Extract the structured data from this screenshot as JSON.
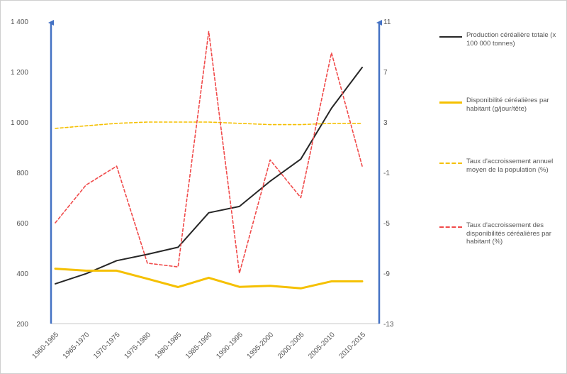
{
  "chart_data": {
    "type": "line",
    "categories": [
      "1960-1965",
      "1965-1970",
      "1970-1975",
      "1975-1980",
      "1980-1985",
      "1985-1990",
      "1990-1995",
      "1995-2000",
      "2000-2005",
      "2005-2010",
      "2010-2015"
    ],
    "left_axis": {
      "min": 200,
      "max": 1400,
      "step": 200,
      "tick_labels": [
        "200",
        "400",
        "600",
        "800",
        "1 000",
        "1 200",
        "1 400"
      ]
    },
    "right_axis": {
      "min": -13,
      "max": 11,
      "step": 4,
      "tick_labels": [
        "-13",
        "-9",
        "-5",
        "-1",
        "3",
        "7",
        "11"
      ]
    },
    "series": [
      {
        "name": "Production céréalière totale (x 100 000 tonnes)",
        "axis": "left",
        "color": "#262626",
        "style": "solid",
        "values": [
          358,
          398,
          450,
          475,
          503,
          640,
          665,
          765,
          853,
          1055,
          1217
        ]
      },
      {
        "name": " Disponibilité céréalières par habitant (g/jour/tête)",
        "axis": "left",
        "color": "#f5c000",
        "style": "solid",
        "values": [
          418,
          410,
          410,
          378,
          345,
          382,
          346,
          350,
          340,
          368,
          368
        ]
      },
      {
        "name": "Taux d'accroissement annuel moyen de la population (%)",
        "axis": "right",
        "color": "#f5c000",
        "style": "dashed",
        "values": [
          2.5,
          2.7,
          2.9,
          3.0,
          3.0,
          3.0,
          2.9,
          2.8,
          2.8,
          2.9,
          2.9
        ]
      },
      {
        "name": " Taux d'accroissement des disponibilités céréalières par habitant (%)",
        "axis": "right",
        "color": "#f04a4a",
        "style": "dashed",
        "values": [
          -5.0,
          -2.0,
          -0.5,
          -8.2,
          -8.5,
          10.2,
          -9.0,
          0.0,
          -3.0,
          8.5,
          -0.5
        ]
      }
    ],
    "legend": {
      "position": "right"
    }
  }
}
